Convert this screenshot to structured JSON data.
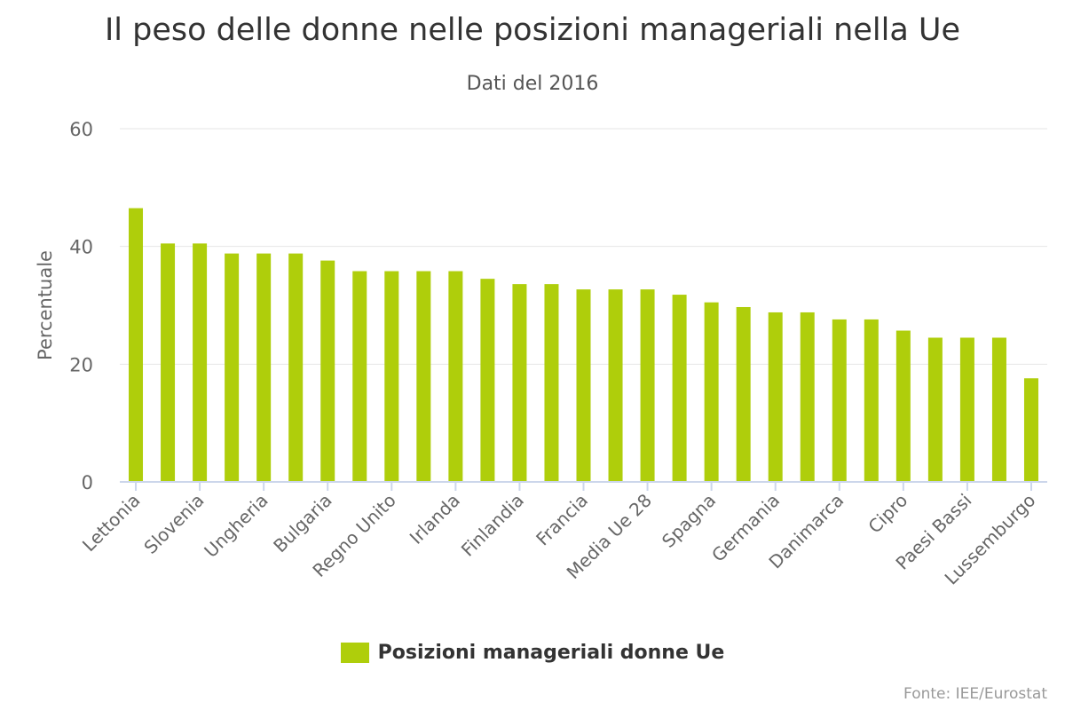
{
  "title": "Il peso delle donne nelle posizioni manageriali nella Ue",
  "subtitle": "Dati del 2016",
  "credit": "Fonte: IEE/Eurostat",
  "colors": {
    "bar": "#afce0b",
    "grid": "#e6e6e6",
    "axis": "#ccd6eb"
  },
  "chart_data": {
    "type": "bar",
    "title": "Il peso delle donne nelle posizioni manageriali nella Ue",
    "subtitle": "Dati del 2016",
    "ylabel": "Percentuale",
    "xlabel": "",
    "ylim": [
      0,
      60
    ],
    "yticks": [
      0,
      20,
      40,
      60
    ],
    "grid": true,
    "legend_position": "bottom",
    "categories": [
      "Lettonia",
      "",
      "Slovenia",
      "",
      "Ungheria",
      "",
      "Bulgaria",
      "",
      "Regno Unito",
      "",
      "Irlanda",
      "",
      "Finlandia",
      "",
      "Francia",
      "",
      "Media Ue 28",
      "",
      "Spagna",
      "",
      "Germania",
      "",
      "Danimarca",
      "",
      "Cipro",
      "",
      "Paesi Bassi",
      "",
      "Lussemburgo"
    ],
    "series": [
      {
        "name": "Posizioni manageriali donne Ue",
        "values": [
          46.5,
          40.5,
          40.5,
          38.8,
          38.8,
          38.8,
          37.6,
          35.8,
          35.8,
          35.8,
          35.8,
          34.5,
          33.6,
          33.6,
          32.7,
          32.7,
          32.7,
          31.8,
          30.5,
          29.7,
          28.8,
          28.8,
          27.6,
          27.6,
          25.7,
          24.5,
          24.5,
          24.5,
          17.6
        ]
      }
    ]
  }
}
